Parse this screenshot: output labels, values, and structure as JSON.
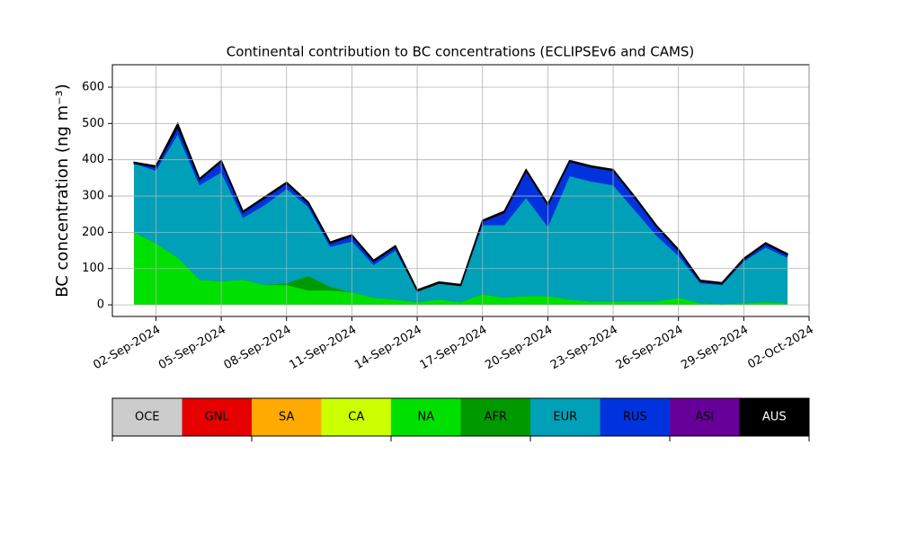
{
  "chart_data": {
    "type": "stacked_area",
    "title": "Continental contribution to BC concentrations (ECLIPSEv6 and CAMS)",
    "y_label": "BC concentration (ng m⁻³)",
    "x": [
      "2024-09-01",
      "2024-09-02",
      "2024-09-03",
      "2024-09-04",
      "2024-09-05",
      "2024-09-06",
      "2024-09-07",
      "2024-09-08",
      "2024-09-09",
      "2024-09-10",
      "2024-09-11",
      "2024-09-12",
      "2024-09-13",
      "2024-09-14",
      "2024-09-15",
      "2024-09-16",
      "2024-09-17",
      "2024-09-18",
      "2024-09-19",
      "2024-09-20",
      "2024-09-21",
      "2024-09-22",
      "2024-09-23",
      "2024-09-24",
      "2024-09-25",
      "2024-09-26",
      "2024-09-27",
      "2024-09-28",
      "2024-09-29",
      "2024-09-30",
      "2024-10-01"
    ],
    "series": [
      {
        "name": "OCE",
        "color": "#cccccc",
        "values": [
          0,
          0,
          0,
          0,
          0,
          0,
          0,
          0,
          0,
          0,
          0,
          0,
          0,
          0,
          0,
          0,
          0,
          0,
          0,
          0,
          0,
          0,
          0,
          0,
          0,
          0,
          0,
          0,
          0,
          0,
          0
        ]
      },
      {
        "name": "GNL",
        "color": "#e60000",
        "values": [
          0,
          0,
          0,
          0,
          0,
          0,
          0,
          0,
          0,
          0,
          0,
          0,
          0,
          0,
          0,
          0,
          0,
          0,
          0,
          0,
          0,
          0,
          0,
          0,
          0,
          0,
          0,
          0,
          0,
          0,
          0
        ]
      },
      {
        "name": "SA",
        "color": "#ffaa00",
        "values": [
          0,
          0,
          0,
          0,
          0,
          0,
          0,
          0,
          0,
          0,
          0,
          0,
          0,
          0,
          0,
          0,
          0,
          0,
          0,
          0,
          0,
          0,
          0,
          0,
          0,
          0,
          0,
          0,
          0,
          0,
          0
        ]
      },
      {
        "name": "CA",
        "color": "#ccff00",
        "values": [
          0,
          0,
          0,
          0,
          0,
          0,
          0,
          0,
          0,
          0,
          0,
          0,
          0,
          0,
          0,
          0,
          0,
          0,
          0,
          0,
          0,
          0,
          0,
          0,
          0,
          0,
          0,
          0,
          0,
          0,
          0
        ]
      },
      {
        "name": "NA",
        "color": "#00e000",
        "values": [
          200,
          170,
          130,
          70,
          65,
          70,
          55,
          55,
          40,
          40,
          35,
          20,
          15,
          8,
          15,
          8,
          30,
          20,
          25,
          25,
          15,
          10,
          10,
          10,
          10,
          20,
          5,
          3,
          5,
          8,
          5
        ]
      },
      {
        "name": "AFR",
        "color": "#009900",
        "values": [
          0,
          0,
          0,
          0,
          0,
          0,
          0,
          5,
          40,
          10,
          0,
          0,
          0,
          0,
          0,
          0,
          0,
          0,
          0,
          0,
          0,
          0,
          0,
          0,
          0,
          0,
          0,
          0,
          0,
          0,
          0
        ]
      },
      {
        "name": "EUR",
        "color": "#00a0b8",
        "values": [
          190,
          200,
          340,
          260,
          300,
          170,
          220,
          260,
          190,
          110,
          140,
          90,
          135,
          30,
          45,
          45,
          190,
          200,
          270,
          190,
          340,
          330,
          320,
          250,
          180,
          115,
          55,
          52,
          115,
          150,
          125
        ]
      },
      {
        "name": "RUS",
        "color": "#0033dd",
        "values": [
          0,
          10,
          20,
          15,
          30,
          15,
          20,
          15,
          10,
          10,
          15,
          10,
          10,
          0,
          0,
          0,
          10,
          30,
          70,
          60,
          40,
          40,
          40,
          35,
          25,
          15,
          5,
          3,
          5,
          10,
          8
        ]
      },
      {
        "name": "ASI",
        "color": "#660099",
        "values": [
          0,
          0,
          0,
          0,
          0,
          0,
          0,
          0,
          0,
          0,
          0,
          0,
          0,
          0,
          0,
          0,
          0,
          5,
          5,
          0,
          0,
          0,
          0,
          0,
          0,
          0,
          0,
          0,
          0,
          0,
          0
        ]
      },
      {
        "name": "AUS",
        "color": "#000000",
        "values": [
          3,
          3,
          10,
          3,
          3,
          3,
          3,
          3,
          3,
          3,
          3,
          3,
          3,
          3,
          3,
          3,
          3,
          3,
          3,
          3,
          3,
          3,
          3,
          3,
          3,
          3,
          3,
          3,
          3,
          3,
          3
        ]
      }
    ],
    "xlim": [
      "2024-08-31",
      "2024-10-02"
    ],
    "xticks": [
      {
        "value": "2024-09-02",
        "label": "02-Sep-2024"
      },
      {
        "value": "2024-09-05",
        "label": "05-Sep-2024"
      },
      {
        "value": "2024-09-08",
        "label": "08-Sep-2024"
      },
      {
        "value": "2024-09-11",
        "label": "11-Sep-2024"
      },
      {
        "value": "2024-09-14",
        "label": "14-Sep-2024"
      },
      {
        "value": "2024-09-17",
        "label": "17-Sep-2024"
      },
      {
        "value": "2024-09-20",
        "label": "20-Sep-2024"
      },
      {
        "value": "2024-09-23",
        "label": "23-Sep-2024"
      },
      {
        "value": "2024-09-26",
        "label": "26-Sep-2024"
      },
      {
        "value": "2024-09-29",
        "label": "29-Sep-2024"
      },
      {
        "value": "2024-10-02",
        "label": "02-Oct-2024"
      }
    ],
    "ylim": [
      -32,
      662
    ],
    "yticks": [
      0,
      100,
      200,
      300,
      400,
      500,
      600
    ],
    "grid": true
  }
}
